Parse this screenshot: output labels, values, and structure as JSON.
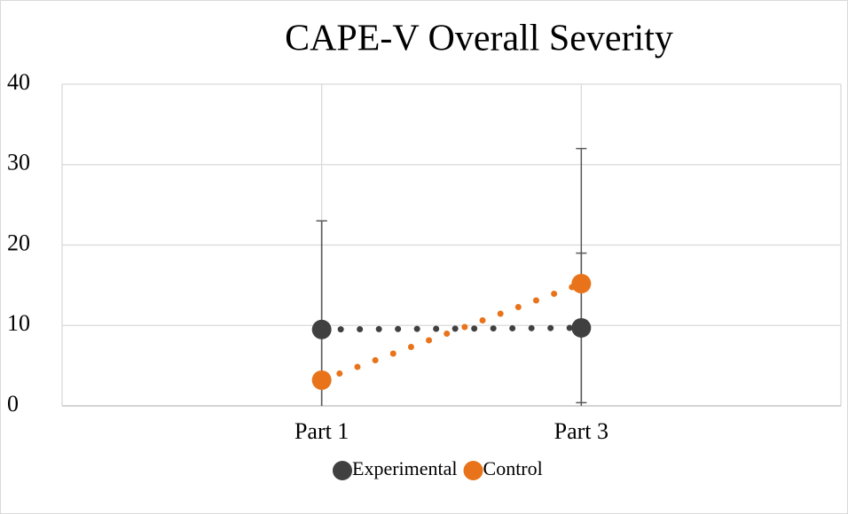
{
  "chart_data": {
    "type": "line",
    "title": "CAPE-V Overall Severity",
    "categories": [
      "Part 1",
      "Part 3"
    ],
    "series": [
      {
        "name": "Experimental",
        "color": "#404040",
        "values": [
          9.5,
          9.7
        ],
        "errors": [
          13.5,
          9.3
        ]
      },
      {
        "name": "Control",
        "color": "#e8731a",
        "values": [
          3.2,
          15.2
        ],
        "errors": [
          19.8,
          16.8
        ]
      }
    ],
    "ylim": [
      0,
      40
    ],
    "yticks": [
      0,
      10,
      20,
      30,
      40
    ],
    "grid": true,
    "legend": "bottom"
  }
}
